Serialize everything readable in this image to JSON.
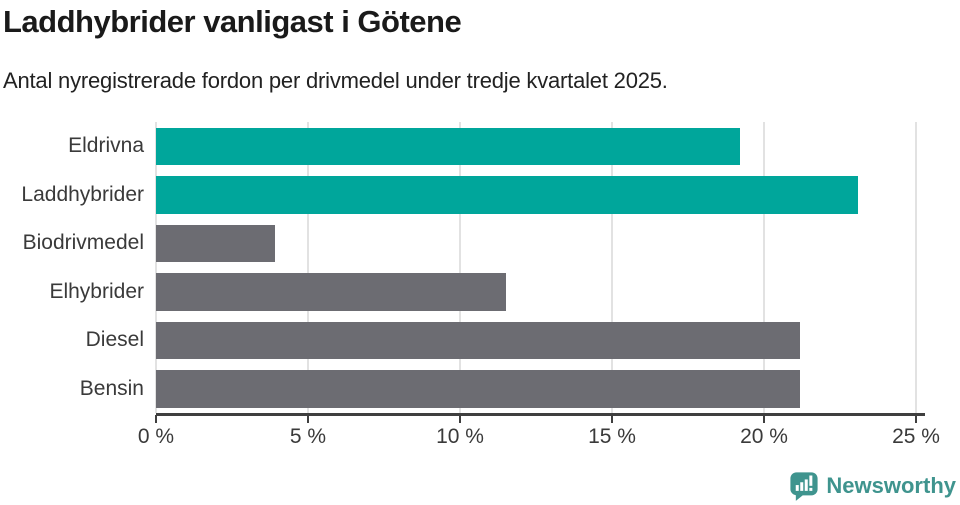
{
  "header": {
    "title": "Laddhybrider vanligast i Götene",
    "subtitle": "Antal nyregistrerade fordon per drivmedel under tredje kvartalet 2025."
  },
  "chart_data": {
    "type": "bar",
    "orientation": "horizontal",
    "title": "Laddhybrider vanligast i Götene",
    "subtitle": "Antal nyregistrerade fordon per drivmedel under tredje kvartalet 2025.",
    "categories": [
      "Eldrivna",
      "Laddhybrider",
      "Biodrivmedel",
      "Elhybrider",
      "Diesel",
      "Bensin"
    ],
    "values": [
      19.2,
      23.1,
      3.9,
      11.5,
      21.2,
      21.2
    ],
    "unit": "%",
    "bar_colors": [
      "#00a69b",
      "#00a69b",
      "#6c6c72",
      "#6c6c72",
      "#6c6c72",
      "#6c6c72"
    ],
    "xlim": [
      0,
      25
    ],
    "x_tick_labels": [
      "0 %",
      "5 %",
      "10 %",
      "15 %",
      "20 %",
      "25 %"
    ],
    "grid": "vertical",
    "legend_position": "none"
  },
  "colors": {
    "highlight": "#00a69b",
    "bar_default": "#6c6c72",
    "gridline": "#e2e2e2",
    "axis_line": "#3f3f3f",
    "label_text": "#3a3a3a",
    "title_text": "#1a1a1a",
    "brand_teal": "#3f948e",
    "background": "#ffffff"
  },
  "footer": {
    "brand_name": "Newsworthy",
    "logo_icon": "newsworthy-speech-bubble-bar-chart-icon"
  }
}
